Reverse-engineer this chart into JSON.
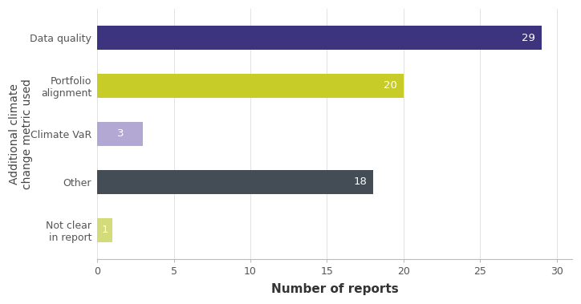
{
  "categories": [
    "Data quality",
    "Portfolio\nalignment",
    "Climate VaR",
    "Other",
    "Not clear\nin report"
  ],
  "values": [
    29,
    20,
    3,
    18,
    1
  ],
  "bar_colors": [
    "#3d3480",
    "#c8cc28",
    "#b3a8d4",
    "#444c55",
    "#d4db7a"
  ],
  "bar_labels": [
    "29",
    "20",
    "3",
    "18",
    "1"
  ],
  "xlabel": "Number of reports",
  "ylabel": "Additional climate\nchange metric used",
  "xlim": [
    0,
    31
  ],
  "xticks": [
    0,
    5,
    10,
    15,
    20,
    25,
    30
  ],
  "background_color": "#ffffff",
  "ylabel_fontsize": 10,
  "xlabel_fontsize": 11,
  "tick_fontsize": 9,
  "bar_height": 0.5,
  "figsize": [
    7.24,
    3.79
  ]
}
